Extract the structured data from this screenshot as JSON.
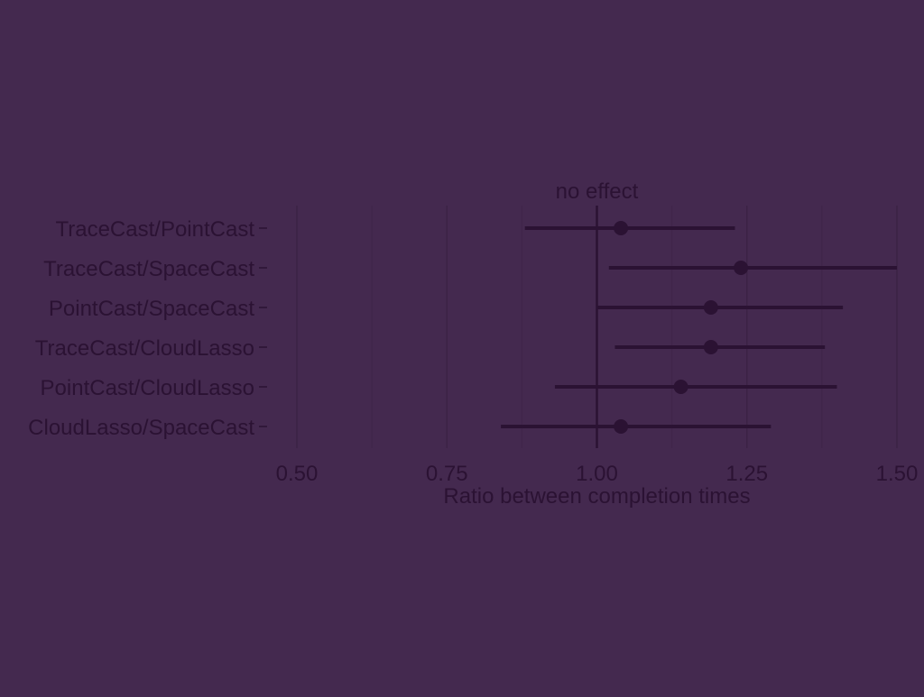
{
  "colors": {
    "background": "#44294f",
    "ink": "#2b1233",
    "grid_major": "#3b2245",
    "grid_minor": "#3f2549",
    "text": "#2b1233"
  },
  "chart_data": {
    "type": "scatter",
    "subtype": "forest-plot",
    "xlabel": "Ratio between completion times",
    "xlim": [
      0.5,
      1.5
    ],
    "xticks": [
      0.5,
      0.75,
      1.0,
      1.25,
      1.5
    ],
    "xtick_labels": [
      "0.50",
      "0.75",
      "1.00",
      "1.25",
      "1.50"
    ],
    "grid": true,
    "reference_line": {
      "x": 1.0,
      "label": "no effect"
    },
    "rows": [
      {
        "label": "TraceCast/PointCast",
        "estimate": 1.04,
        "lower": 0.88,
        "upper": 1.23
      },
      {
        "label": "TraceCast/SpaceCast",
        "estimate": 1.24,
        "lower": 1.02,
        "upper": 1.5
      },
      {
        "label": "PointCast/SpaceCast",
        "estimate": 1.19,
        "lower": 1.0,
        "upper": 1.41
      },
      {
        "label": "TraceCast/CloudLasso",
        "estimate": 1.19,
        "lower": 1.03,
        "upper": 1.38
      },
      {
        "label": "PointCast/CloudLasso",
        "estimate": 1.14,
        "lower": 0.93,
        "upper": 1.4
      },
      {
        "label": "CloudLasso/SpaceCast",
        "estimate": 1.04,
        "lower": 0.84,
        "upper": 1.29
      }
    ]
  }
}
